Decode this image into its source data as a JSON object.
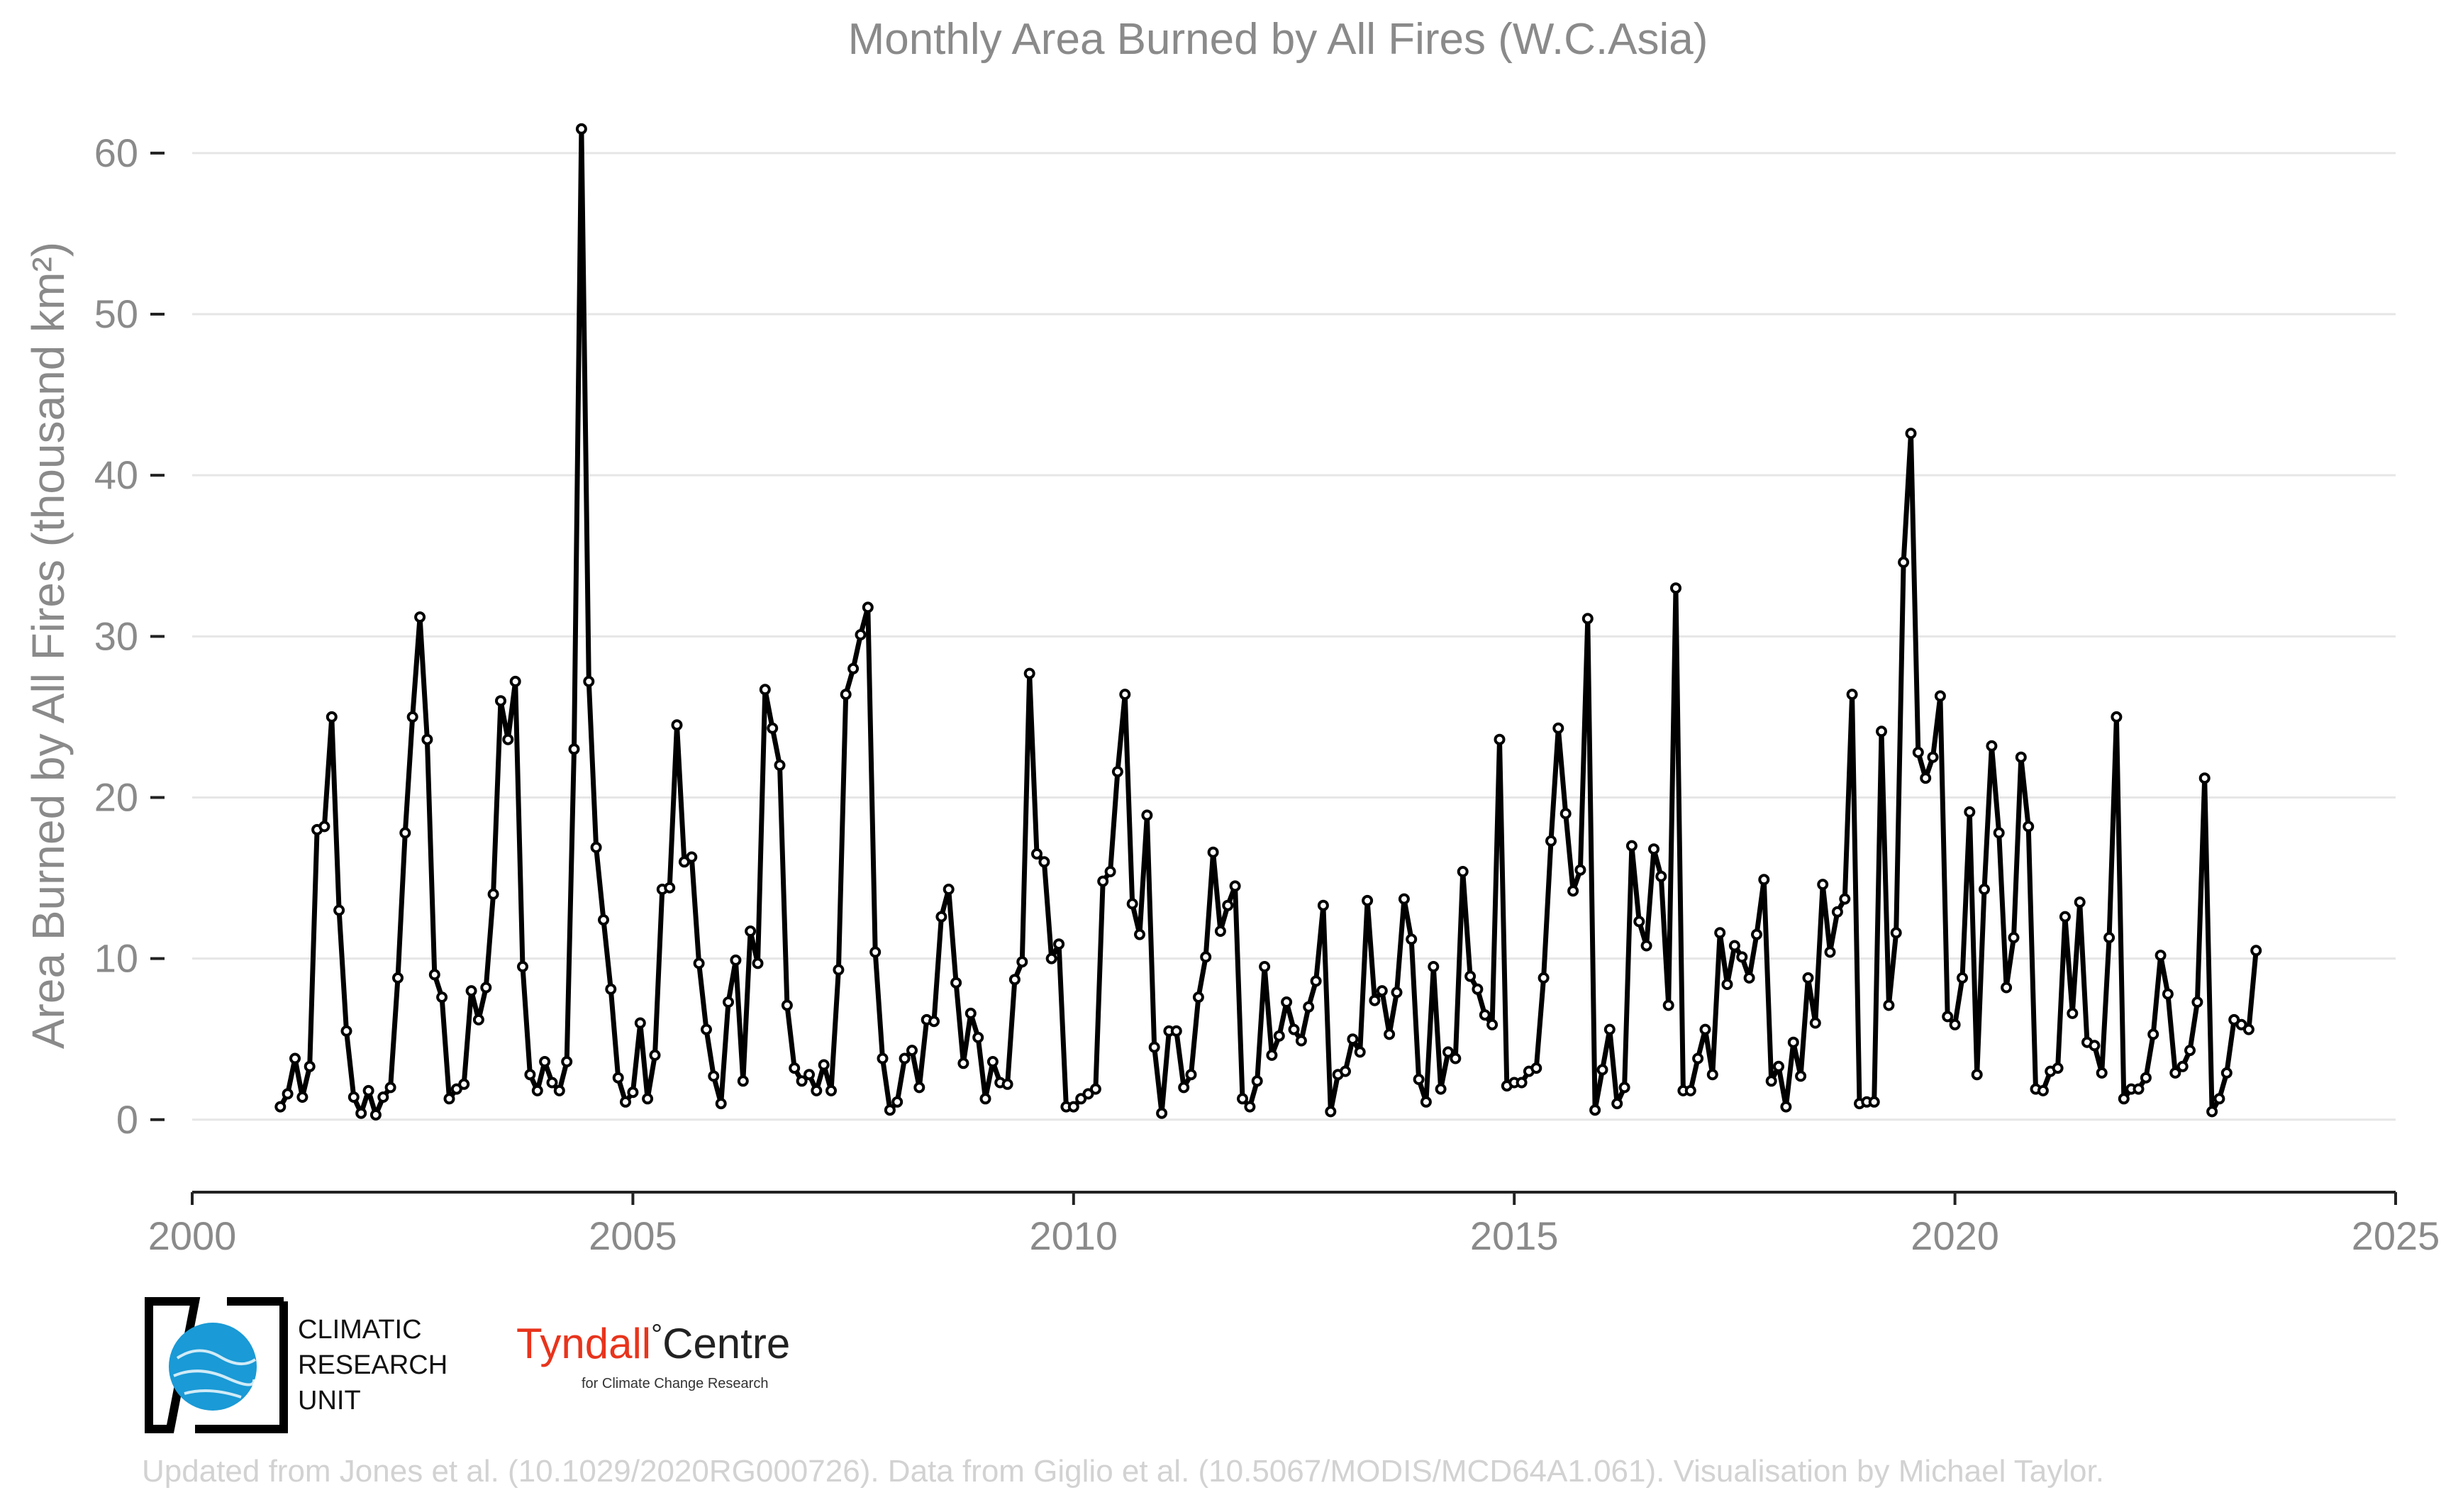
{
  "chart_data": {
    "type": "line",
    "title": "Monthly Area Burned by All Fires (W.C.Asia)",
    "ylabel": "Area Burned by All Fires (thousand km²)",
    "xlabel": "",
    "xlim": [
      2000,
      2025
    ],
    "ylim": [
      -4.5,
      64
    ],
    "xticks": [
      2000,
      2005,
      2010,
      2015,
      2020,
      2025
    ],
    "yticks": [
      0,
      10,
      20,
      30,
      40,
      50,
      60
    ],
    "grid": "horizontal",
    "legend": "none",
    "series": [
      {
        "color": "#000000",
        "start": 2001.0,
        "step_months": 1,
        "values": [
          0.8,
          1.6,
          3.8,
          1.4,
          3.3,
          18.0,
          18.2,
          25.0,
          13.0,
          5.5,
          1.4,
          0.4,
          1.8,
          0.3,
          1.4,
          2.0,
          8.8,
          17.8,
          25.0,
          31.2,
          23.6,
          9.0,
          7.6,
          1.3,
          1.9,
          2.2,
          8.0,
          6.2,
          8.2,
          14.0,
          26.0,
          23.6,
          27.2,
          9.5,
          2.8,
          1.8,
          3.6,
          2.3,
          1.8,
          3.6,
          23.0,
          61.5,
          27.2,
          16.9,
          12.4,
          8.1,
          2.6,
          1.1,
          1.7,
          6.0,
          1.3,
          4.0,
          14.3,
          14.4,
          24.5,
          16.0,
          16.3,
          9.7,
          5.6,
          2.7,
          1.0,
          7.3,
          9.9,
          2.4,
          11.7,
          9.7,
          26.7,
          24.3,
          22.0,
          7.1,
          3.2,
          2.4,
          2.8,
          1.8,
          3.4,
          1.8,
          9.3,
          26.4,
          28.0,
          30.1,
          31.8,
          10.4,
          3.8,
          0.6,
          1.1,
          3.8,
          4.3,
          2.0,
          6.2,
          6.1,
          12.6,
          14.3,
          8.5,
          3.5,
          6.6,
          5.1,
          1.3,
          3.6,
          2.3,
          2.2,
          8.7,
          9.8,
          27.7,
          16.5,
          16.0,
          10.0,
          10.9,
          0.8,
          0.8,
          1.3,
          1.6,
          1.9,
          14.8,
          15.4,
          21.6,
          26.4,
          13.4,
          11.5,
          18.9,
          4.5,
          0.4,
          5.5,
          5.5,
          2.0,
          2.8,
          7.6,
          10.1,
          16.6,
          11.7,
          13.3,
          14.5,
          1.3,
          0.8,
          2.4,
          9.5,
          4.0,
          5.2,
          7.3,
          5.6,
          4.9,
          7.0,
          8.6,
          13.3,
          0.5,
          2.8,
          3.0,
          5.0,
          4.2,
          13.6,
          7.4,
          8.0,
          5.3,
          7.9,
          13.7,
          11.2,
          2.5,
          1.1,
          9.5,
          1.9,
          4.2,
          3.8,
          15.4,
          8.9,
          8.1,
          6.5,
          5.9,
          23.6,
          2.1,
          2.3,
          2.3,
          3.0,
          3.2,
          8.8,
          17.3,
          24.3,
          19.0,
          14.2,
          15.5,
          31.1,
          0.6,
          3.1,
          5.6,
          1.0,
          2.0,
          17.0,
          12.3,
          10.8,
          16.8,
          15.1,
          7.1,
          33.0,
          1.8,
          1.8,
          3.8,
          5.6,
          2.8,
          11.6,
          8.4,
          10.8,
          10.1,
          8.8,
          11.5,
          14.9,
          2.4,
          3.3,
          0.8,
          4.8,
          2.7,
          8.8,
          6.0,
          14.6,
          10.4,
          12.9,
          13.7,
          26.4,
          1.0,
          1.1,
          1.1,
          24.1,
          7.1,
          11.6,
          34.6,
          42.6,
          22.8,
          21.2,
          22.5,
          26.3,
          6.4,
          5.9,
          8.8,
          19.1,
          2.8,
          14.3,
          23.2,
          17.8,
          8.2,
          11.3,
          22.5,
          18.2,
          1.9,
          1.8,
          3.0,
          3.2,
          12.6,
          6.6,
          13.5,
          4.8,
          4.6,
          2.9,
          11.3,
          25.0,
          1.3,
          1.9,
          1.9,
          2.6,
          5.3,
          10.2,
          7.8,
          2.9,
          3.3,
          4.3,
          7.3,
          21.2,
          0.5,
          1.3,
          2.9,
          6.2,
          5.9,
          5.6,
          10.5
        ]
      }
    ]
  },
  "footer": {
    "cru_label": "CLIMATIC\nRESEARCH\nUNIT",
    "tyndall_main": "Tyndall",
    "tyndall_degree": "°",
    "tyndall_centre": "Centre",
    "tyndall_sub": "for Climate Change Research",
    "credit": "Updated from Jones et al. (10.1029/2020RG000726). Data from Giglio et al. (10.5067/MODIS/MCD64A1.061). Visualisation by Michael Taylor."
  },
  "icons": {
    "cru_logo": "globe-icon",
    "cru_accent": "#1a9ad6"
  }
}
